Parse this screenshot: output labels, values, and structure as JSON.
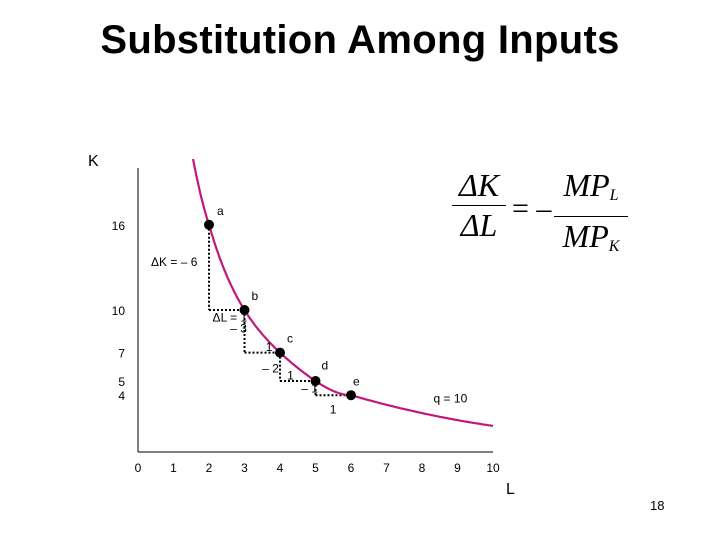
{
  "slide": {
    "title": "Substitution Among Inputs",
    "page_number": "18"
  },
  "formula": {
    "lhs_numerator": "ΔK",
    "lhs_denominator": "ΔL",
    "equals": "= –",
    "rhs_numerator": "MP",
    "rhs_numerator_sub": "L",
    "rhs_denominator": "MP",
    "rhs_denominator_sub": "K"
  },
  "chart_data": {
    "type": "line",
    "xlabel": "L",
    "ylabel": "K",
    "xlim": [
      0,
      10
    ],
    "ylim": [
      0,
      20
    ],
    "x_ticks": [
      "0",
      "1",
      "2",
      "3",
      "4",
      "5",
      "6",
      "7",
      "8",
      "9",
      "10"
    ],
    "y_ticks": [
      {
        "value": 16,
        "label": "16"
      },
      {
        "value": 10,
        "label": "10"
      },
      {
        "value": 7,
        "label": "7"
      },
      {
        "value": 5,
        "label": "5"
      },
      {
        "value": 4,
        "label": "4"
      }
    ],
    "curve_color": "#c2187e",
    "curve_label": "q = 10",
    "points": [
      {
        "label": "a",
        "x": 2,
        "y": 16
      },
      {
        "label": "b",
        "x": 3,
        "y": 10
      },
      {
        "label": "c",
        "x": 4,
        "y": 7
      },
      {
        "label": "d",
        "x": 5,
        "y": 5
      },
      {
        "label": "e",
        "x": 6,
        "y": 4
      }
    ],
    "steps": [
      {
        "from": "a",
        "to": "b",
        "dk_label": "ΔK = – 6",
        "dl_label": "ΔL = 1"
      },
      {
        "from": "b",
        "to": "c",
        "dk_label": "– 3",
        "dl_label": "1"
      },
      {
        "from": "c",
        "to": "d",
        "dk_label": "– 2",
        "dl_label": "1"
      },
      {
        "from": "d",
        "to": "e",
        "dk_label": "– 1",
        "dl_label": "1"
      }
    ]
  }
}
